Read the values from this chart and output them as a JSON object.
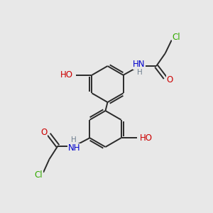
{
  "bg_color": "#e8e8e8",
  "bond_color": "#2a2a2a",
  "bond_width": 1.4,
  "atom_colors": {
    "N": "#0000cc",
    "O": "#cc0000",
    "Cl": "#33aa00",
    "H_gray": "#708090"
  },
  "font_size": 8.5,
  "font_size_small": 7.5,
  "ring_r": 0.85,
  "upper_ring": [
    5.05,
    6.05
  ],
  "lower_ring": [
    4.95,
    3.95
  ]
}
